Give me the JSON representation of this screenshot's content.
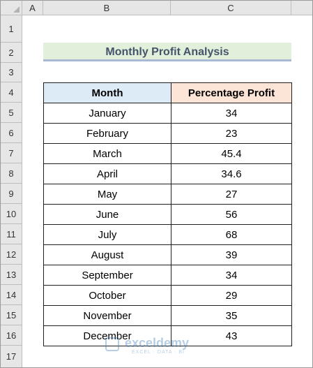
{
  "columns": [
    "A",
    "B",
    "C"
  ],
  "rows": [
    "1",
    "2",
    "3",
    "4",
    "5",
    "6",
    "7",
    "8",
    "9",
    "10",
    "11",
    "12",
    "13",
    "14",
    "15",
    "16",
    "17"
  ],
  "title": "Monthly Profit Analysis",
  "table": {
    "headers": {
      "month": "Month",
      "profit": "Percentage Profit"
    },
    "rows": [
      {
        "month": "January",
        "profit": "34"
      },
      {
        "month": "February",
        "profit": "23"
      },
      {
        "month": "March",
        "profit": "45.4"
      },
      {
        "month": "April",
        "profit": "34.6"
      },
      {
        "month": "May",
        "profit": "27"
      },
      {
        "month": "June",
        "profit": "56"
      },
      {
        "month": "July",
        "profit": "68"
      },
      {
        "month": "August",
        "profit": "39"
      },
      {
        "month": "September",
        "profit": "34"
      },
      {
        "month": "October",
        "profit": "29"
      },
      {
        "month": "November",
        "profit": "35"
      },
      {
        "month": "December",
        "profit": "43"
      }
    ]
  },
  "watermark": {
    "name": "exceldemy",
    "tagline": "EXCEL · DATA · BI",
    "icon": "exceldemy-logo-icon"
  },
  "colors": {
    "title_fill": "#e2efda",
    "title_text": "#44546a",
    "title_underline": "#a8b9d3",
    "month_header_fill": "#ddebf7",
    "profit_header_fill": "#fce4d6",
    "header_bg": "#e6e6e6"
  }
}
